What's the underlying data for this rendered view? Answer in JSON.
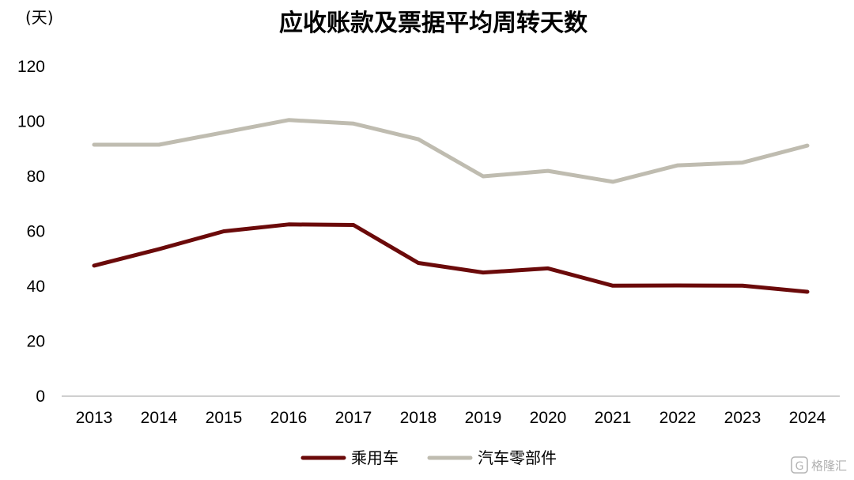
{
  "chart_data": {
    "type": "line",
    "title": "应收账款及票据平均周转天数",
    "unit_label": "(天)",
    "categories": [
      "2013",
      "2014",
      "2015",
      "2016",
      "2017",
      "2018",
      "2019",
      "2020",
      "2021",
      "2022",
      "2023",
      "2024"
    ],
    "y_ticks": [
      "0",
      "20",
      "40",
      "60",
      "80",
      "100",
      "120"
    ],
    "ylim": [
      0,
      120
    ],
    "grid": false,
    "legend_position": "bottom-center",
    "series": [
      {
        "name": "乘用车",
        "color": "#6b0a0a",
        "values": [
          47.5,
          53.5,
          60,
          62.5,
          62.3,
          48.5,
          45,
          46.5,
          40.2,
          40.3,
          40.2,
          38
        ]
      },
      {
        "name": "汽车零部件",
        "color": "#bfbcb0",
        "values": [
          91.5,
          91.5,
          96,
          100.5,
          99.2,
          93.5,
          80,
          82,
          78,
          84,
          85,
          91.2
        ]
      }
    ]
  },
  "watermark": {
    "icon": "g-logo-icon",
    "text": "格隆汇"
  }
}
